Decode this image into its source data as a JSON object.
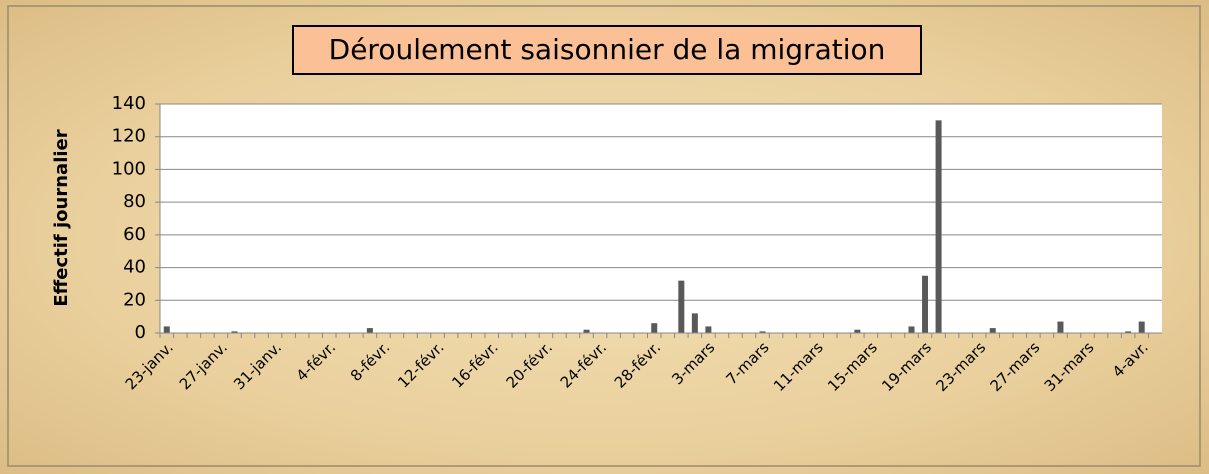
{
  "chart_data": {
    "type": "bar",
    "title": "Déroulement saisonnier de la migration",
    "y_label": "Effectif journalier",
    "categories": [
      "23-janv.",
      null,
      null,
      null,
      "27-janv.",
      null,
      null,
      null,
      "31-janv.",
      null,
      null,
      null,
      "4-févr.",
      null,
      null,
      null,
      "8-févr.",
      null,
      null,
      null,
      "12-févr.",
      null,
      null,
      null,
      "16-févr.",
      null,
      null,
      null,
      "20-févr.",
      null,
      null,
      null,
      "24-févr.",
      null,
      null,
      null,
      "28-févr.",
      null,
      null,
      null,
      "3-mars",
      null,
      null,
      null,
      "7-mars",
      null,
      null,
      null,
      "11-mars",
      null,
      null,
      null,
      "15-mars",
      null,
      null,
      null,
      "19-mars",
      null,
      null,
      null,
      "23-mars",
      null,
      null,
      null,
      "27-mars",
      null,
      null,
      null,
      "31-mars",
      null,
      null,
      null,
      "4-avr.",
      null
    ],
    "values": [
      4,
      0,
      0,
      0,
      0,
      1,
      0,
      0,
      0,
      0,
      0,
      0,
      0,
      0,
      0,
      3,
      0,
      0,
      0,
      0,
      0,
      0,
      0,
      0,
      0,
      0,
      0,
      0,
      0,
      0,
      0,
      2,
      0,
      0,
      0,
      0,
      6,
      0,
      32,
      12,
      4,
      0,
      0,
      0,
      1,
      0,
      0,
      0,
      0,
      0,
      0,
      2,
      0,
      0,
      0,
      4,
      35,
      130,
      0,
      0,
      0,
      3,
      0,
      0,
      0,
      0,
      7,
      0,
      0,
      0,
      0,
      1,
      7,
      0
    ],
    "color": "#595959",
    "ylim": [
      0,
      140
    ],
    "yticks": [
      0,
      20,
      40,
      60,
      80,
      100,
      120,
      140
    ],
    "grid": true
  }
}
